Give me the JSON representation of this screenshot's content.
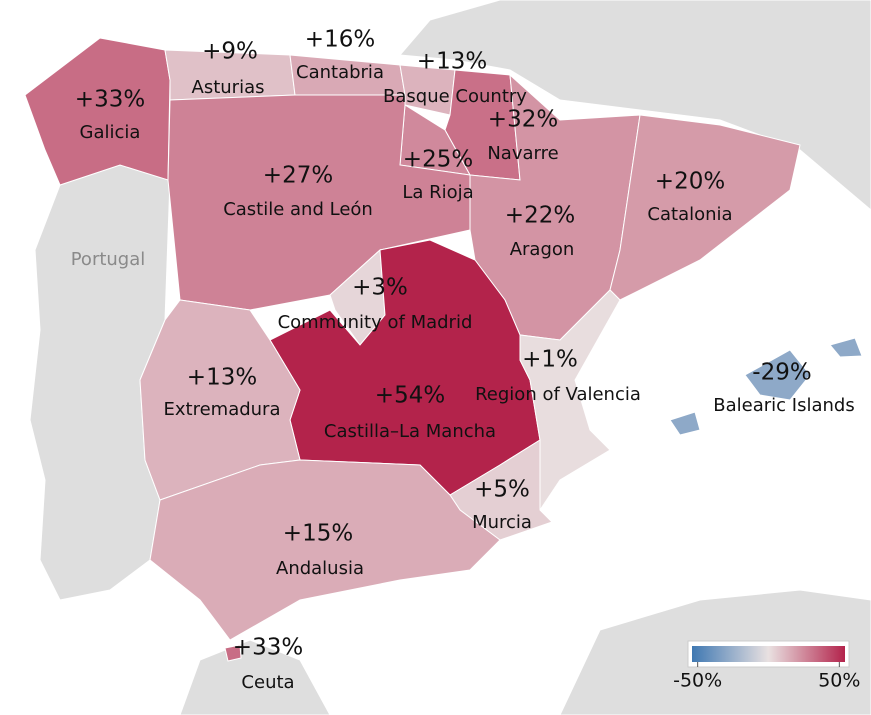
{
  "chart_data": {
    "type": "choropleth",
    "background_labels": [
      "Portugal"
    ],
    "categories": [
      "Galicia",
      "Asturias",
      "Cantabria",
      "Basque Country",
      "Navarre",
      "La Rioja",
      "Castile and León",
      "Aragon",
      "Catalonia",
      "Community of Madrid",
      "Castilla–La Mancha",
      "Region of Valencia",
      "Extremadura",
      "Murcia",
      "Andalusia",
      "Balearic Islands",
      "Ceuta"
    ],
    "values": [
      33,
      9,
      16,
      13,
      32,
      25,
      27,
      22,
      20,
      3,
      54,
      1,
      13,
      5,
      15,
      -29,
      33
    ],
    "value_labels": [
      "+33%",
      "+9%",
      "+16%",
      "+13%",
      "+32%",
      "+25%",
      "+27%",
      "+22%",
      "+20%",
      "+3%",
      "+54%",
      "+1%",
      "+13%",
      "+5%",
      "+15%",
      "-29%",
      "+33%"
    ],
    "colorlim": [
      -54,
      54
    ],
    "min_color": "#3f78b2",
    "mid_color": "#e9e1e1",
    "max_color": "#b3234b",
    "legend_ticks": [
      {
        "value": -50,
        "label": "-50%"
      },
      {
        "value": 50,
        "label": "50%"
      }
    ],
    "legend_position": "bottom-right"
  }
}
